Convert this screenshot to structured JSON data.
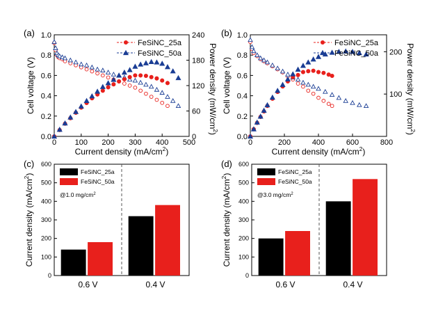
{
  "panels": {
    "a": {
      "label": "(a)"
    },
    "b": {
      "label": "(b)"
    },
    "c": {
      "label": "(c)"
    },
    "d": {
      "label": "(d)"
    }
  },
  "colors": {
    "series_25a": "#e8201c",
    "series_50a": "#1a3d94",
    "bar_25a": "#000000",
    "bar_50a": "#e8201c"
  },
  "chart_data": [
    {
      "id": "a",
      "type": "line",
      "xlabel": "Current density (mA/cm2)",
      "ylabel": "Cell voltage (V)",
      "y2label": "Power density (mW/cm2)",
      "xlim": [
        0,
        500
      ],
      "ylim": [
        0,
        1.0
      ],
      "y2lim": [
        0,
        240
      ],
      "xticks": [
        0,
        100,
        200,
        300,
        400,
        500
      ],
      "yticks": [
        0.0,
        0.2,
        0.4,
        0.6,
        0.8,
        1.0
      ],
      "y2ticks": [
        0,
        60,
        120,
        180,
        240
      ],
      "legend_position": "top-right",
      "series": [
        {
          "name": "FeSiNC_25a",
          "curve": "voltage",
          "axis": "left",
          "marker": "open-circle",
          "x": [
            0,
            5,
            10,
            15,
            20,
            30,
            40,
            60,
            80,
            100,
            120,
            140,
            160,
            180,
            200,
            220,
            240,
            260,
            280,
            300,
            320,
            340,
            360,
            380,
            400,
            420
          ],
          "y": [
            0.92,
            0.85,
            0.8,
            0.78,
            0.77,
            0.76,
            0.74,
            0.72,
            0.7,
            0.68,
            0.66,
            0.64,
            0.62,
            0.6,
            0.58,
            0.56,
            0.54,
            0.52,
            0.5,
            0.48,
            0.45,
            0.42,
            0.39,
            0.36,
            0.33,
            0.3
          ]
        },
        {
          "name": "FeSiNC_50a",
          "curve": "voltage",
          "axis": "left",
          "marker": "open-triangle",
          "x": [
            0,
            5,
            10,
            15,
            20,
            30,
            40,
            60,
            80,
            100,
            120,
            140,
            160,
            180,
            200,
            220,
            240,
            260,
            280,
            300,
            320,
            340,
            360,
            380,
            400,
            420,
            440,
            460
          ],
          "y": [
            0.93,
            0.87,
            0.82,
            0.8,
            0.79,
            0.78,
            0.77,
            0.75,
            0.73,
            0.71,
            0.7,
            0.68,
            0.66,
            0.65,
            0.63,
            0.61,
            0.6,
            0.58,
            0.56,
            0.55,
            0.53,
            0.51,
            0.49,
            0.46,
            0.43,
            0.39,
            0.35,
            0.3
          ]
        },
        {
          "name": "FeSiNC_25a",
          "curve": "power",
          "axis": "right",
          "marker": "filled-circle",
          "x": [
            0,
            20,
            40,
            60,
            80,
            100,
            120,
            140,
            160,
            180,
            200,
            220,
            240,
            260,
            280,
            300,
            320,
            340,
            360,
            380,
            400,
            420
          ],
          "y": [
            0,
            15,
            30,
            43,
            56,
            68,
            79,
            90,
            99,
            108,
            116,
            123,
            130,
            135,
            140,
            144,
            144,
            143,
            140,
            137,
            132,
            126
          ]
        },
        {
          "name": "FeSiNC_50a",
          "curve": "power",
          "axis": "right",
          "marker": "filled-triangle",
          "x": [
            0,
            20,
            40,
            60,
            80,
            100,
            120,
            140,
            160,
            180,
            200,
            220,
            240,
            260,
            280,
            300,
            320,
            340,
            360,
            380,
            400,
            420,
            440,
            460
          ],
          "y": [
            0,
            16,
            31,
            45,
            58,
            71,
            84,
            95,
            106,
            117,
            126,
            134,
            144,
            151,
            157,
            165,
            170,
            173,
            176,
            175,
            172,
            164,
            154,
            138
          ]
        }
      ]
    },
    {
      "id": "b",
      "type": "line",
      "xlabel": "Current density (mA/cm2)",
      "ylabel": "Cell voltage (V)",
      "y2label": "Power density (mW/cm2)",
      "xlim": [
        0,
        800
      ],
      "ylim": [
        0,
        1.0
      ],
      "y2lim": [
        0,
        240
      ],
      "xticks": [
        0,
        200,
        400,
        600,
        800
      ],
      "yticks": [
        0.0,
        0.2,
        0.4,
        0.6,
        0.8,
        1.0
      ],
      "y2ticks": [
        100,
        200
      ],
      "legend_position": "top-right",
      "series": [
        {
          "name": "FeSiNC_25a",
          "curve": "voltage",
          "axis": "left",
          "marker": "open-circle",
          "x": [
            0,
            10,
            20,
            40,
            60,
            80,
            100,
            130,
            160,
            190,
            220,
            250,
            280,
            310,
            340,
            370,
            400,
            430,
            460,
            480
          ],
          "y": [
            0.93,
            0.86,
            0.82,
            0.79,
            0.76,
            0.74,
            0.72,
            0.69,
            0.66,
            0.63,
            0.59,
            0.56,
            0.52,
            0.49,
            0.45,
            0.42,
            0.38,
            0.35,
            0.32,
            0.3
          ]
        },
        {
          "name": "FeSiNC_50a",
          "curve": "voltage",
          "axis": "left",
          "marker": "open-triangle",
          "x": [
            0,
            10,
            20,
            40,
            60,
            80,
            100,
            130,
            160,
            190,
            220,
            250,
            280,
            310,
            340,
            370,
            400,
            440,
            480,
            520,
            560,
            600,
            640,
            680
          ],
          "y": [
            0.95,
            0.88,
            0.84,
            0.8,
            0.77,
            0.75,
            0.73,
            0.7,
            0.67,
            0.64,
            0.61,
            0.58,
            0.56,
            0.53,
            0.51,
            0.49,
            0.47,
            0.44,
            0.41,
            0.38,
            0.35,
            0.33,
            0.31,
            0.3
          ]
        },
        {
          "name": "FeSiNC_25a",
          "curve": "power",
          "axis": "right",
          "marker": "filled-circle",
          "x": [
            0,
            20,
            40,
            60,
            80,
            100,
            130,
            160,
            190,
            220,
            250,
            280,
            310,
            340,
            370,
            400,
            430,
            460,
            480
          ],
          "y": [
            0,
            17,
            32,
            46,
            59,
            72,
            89,
            105,
            118,
            130,
            140,
            145,
            152,
            154,
            155,
            152,
            150,
            146,
            143
          ]
        },
        {
          "name": "FeSiNC_50a",
          "curve": "power",
          "axis": "right",
          "marker": "filled-triangle",
          "x": [
            0,
            20,
            40,
            60,
            80,
            100,
            130,
            160,
            190,
            220,
            250,
            280,
            310,
            340,
            370,
            400,
            440,
            480,
            520,
            560,
            600,
            640,
            680
          ],
          "y": [
            0,
            17,
            33,
            47,
            61,
            74,
            92,
            108,
            122,
            135,
            147,
            158,
            167,
            175,
            182,
            188,
            194,
            198,
            200,
            201,
            200,
            197,
            194
          ]
        }
      ]
    },
    {
      "id": "c",
      "type": "bar",
      "ylabel": "Current density (mA/cm2)",
      "categories": [
        "0.6 V",
        "0.4 V"
      ],
      "ylim": [
        0,
        600
      ],
      "yticks": [
        0,
        100,
        200,
        300,
        400,
        500,
        600
      ],
      "annotation": "@1.0 mg/cm2",
      "legend_position": "top-left",
      "series": [
        {
          "name": "FeSiNC_25a",
          "values": [
            140,
            320
          ]
        },
        {
          "name": "FeSiNC_50a",
          "values": [
            180,
            380
          ]
        }
      ]
    },
    {
      "id": "d",
      "type": "bar",
      "ylabel": "Current density (mA/cm2)",
      "categories": [
        "0.6 V",
        "0.4 V"
      ],
      "ylim": [
        0,
        600
      ],
      "yticks": [
        0,
        100,
        200,
        300,
        400,
        500,
        600
      ],
      "annotation": "@3.0 mg/cm2",
      "legend_position": "top-left",
      "series": [
        {
          "name": "FeSiNC_25a",
          "values": [
            200,
            400
          ]
        },
        {
          "name": "FeSiNC_50a",
          "values": [
            240,
            520
          ]
        }
      ]
    }
  ]
}
